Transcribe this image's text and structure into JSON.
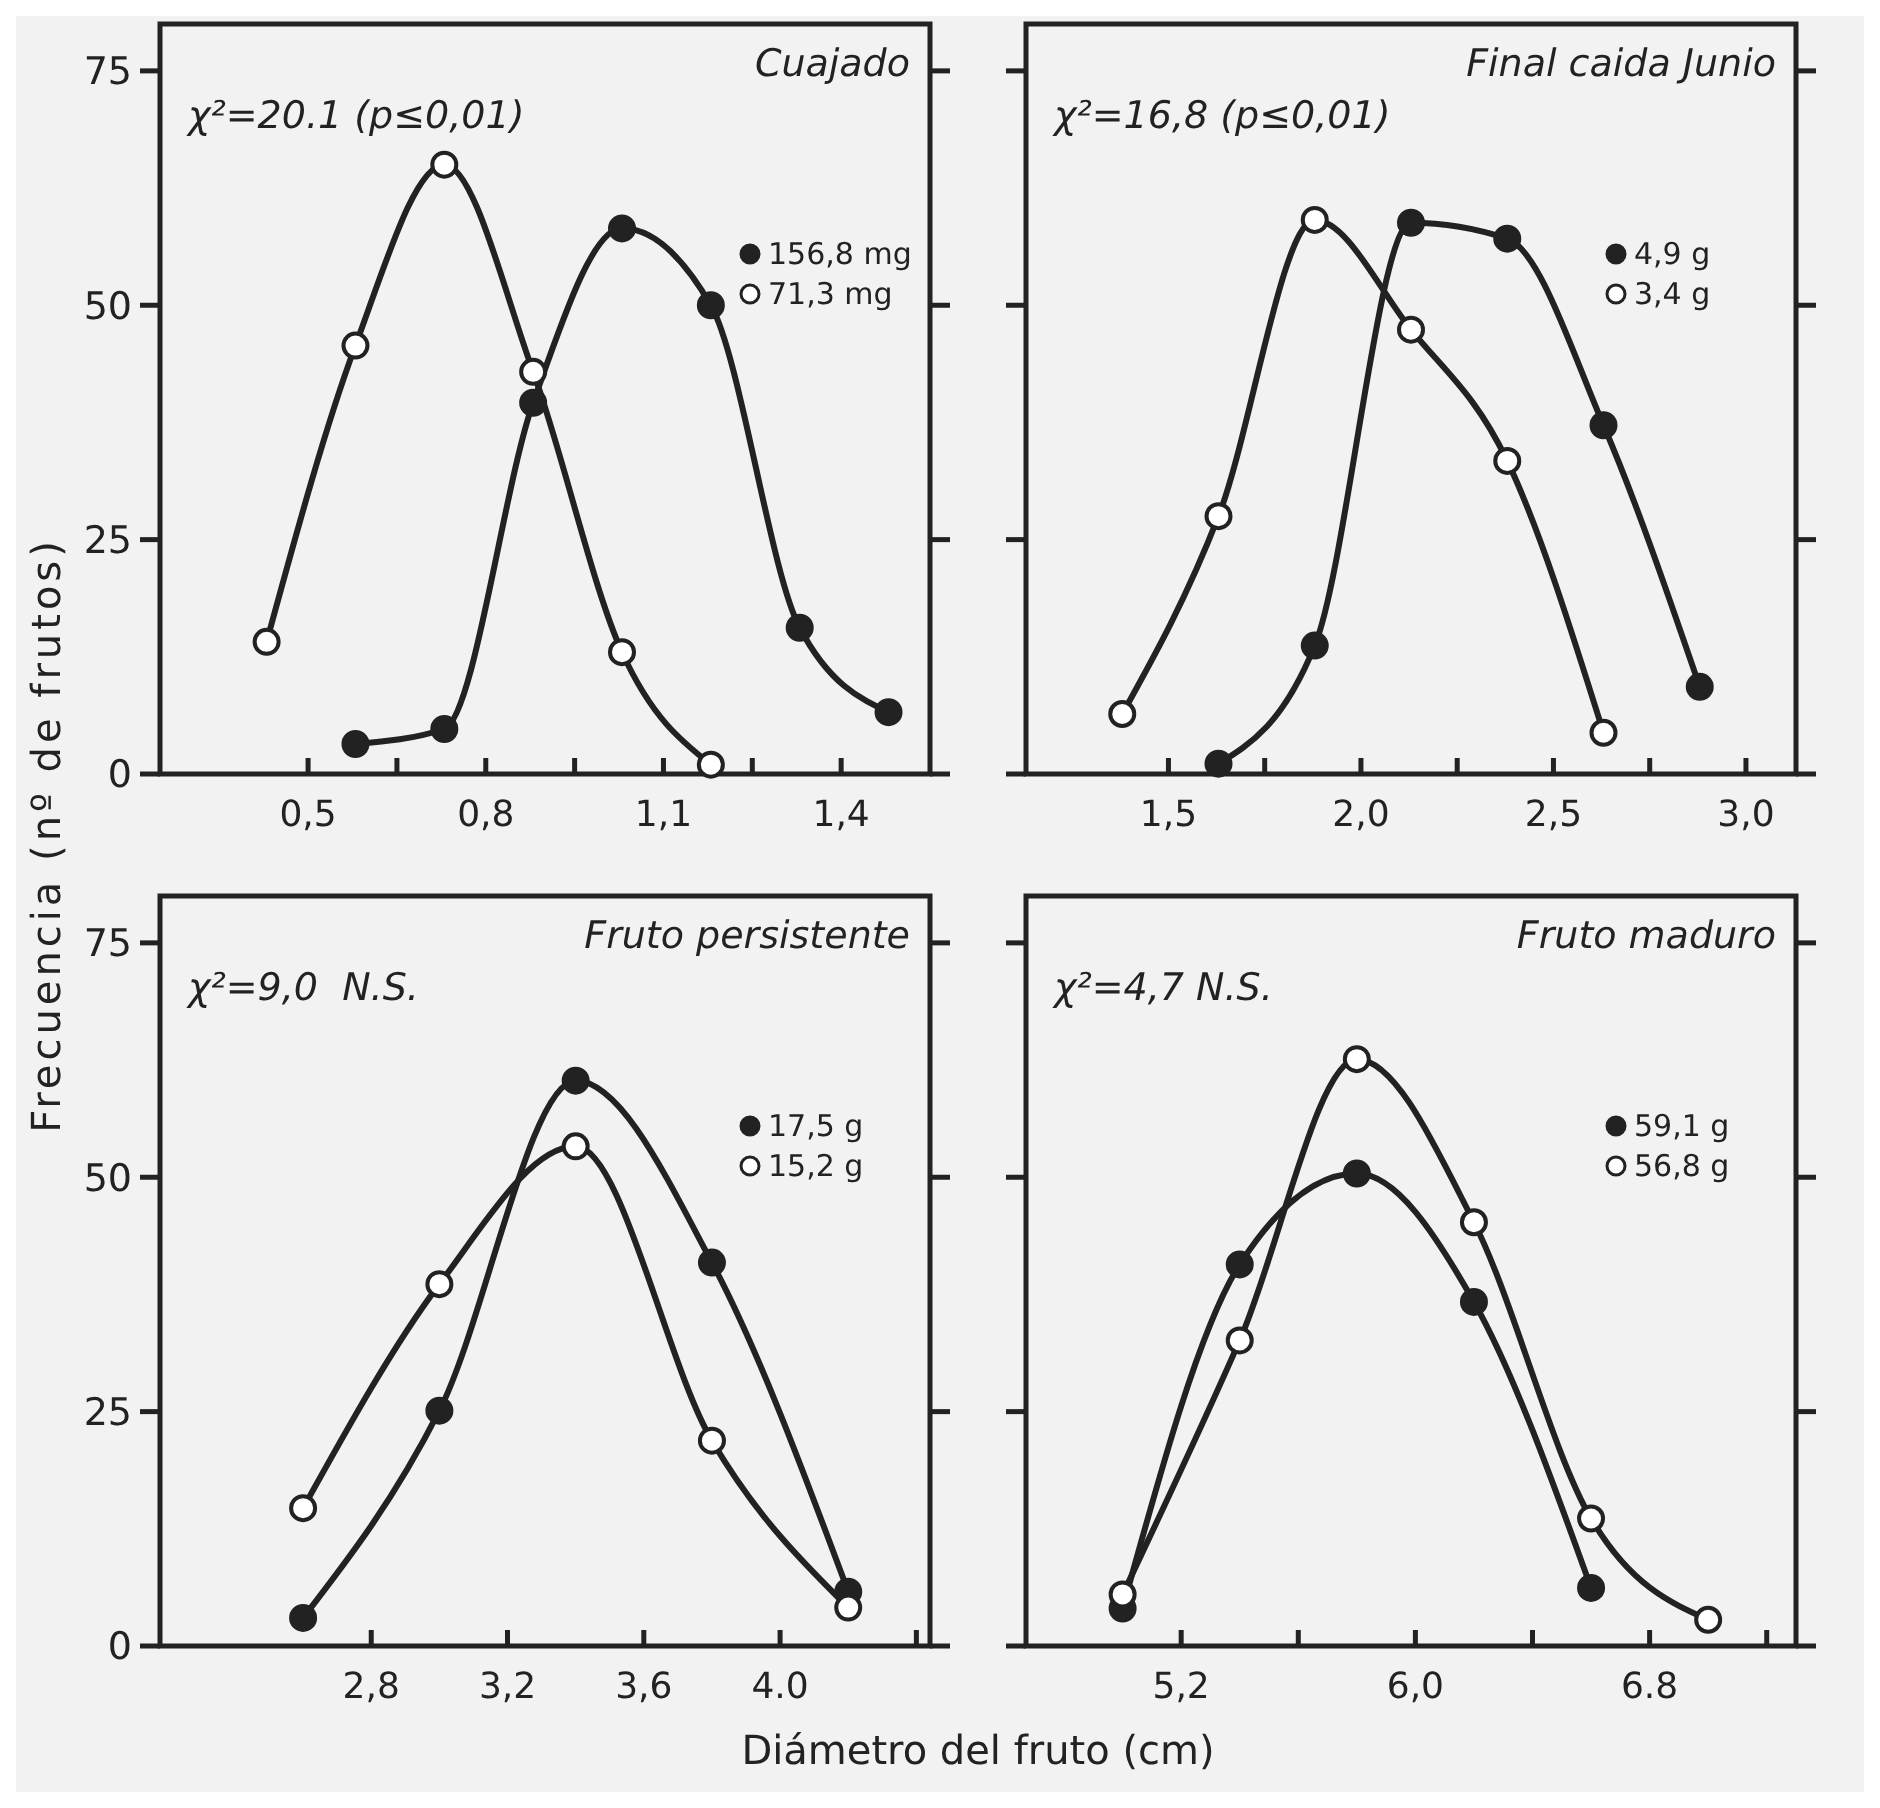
{
  "chart_data": [
    {
      "type": "line",
      "title": "Cuajado",
      "ylabel": "Frecuencia (nº de frutos)",
      "annotations": [
        "χ²=20.1 (p≤0,01)"
      ],
      "xlim": [
        0.25,
        1.55
      ],
      "xticks": [
        {
          "value": 0.5,
          "label": "0,5"
        },
        {
          "value": 0.65,
          "label": null
        },
        {
          "value": 0.8,
          "label": "0,8"
        },
        {
          "value": 0.95,
          "label": null
        },
        {
          "value": 1.1,
          "label": "1,1"
        },
        {
          "value": 1.25,
          "label": null
        },
        {
          "value": 1.4,
          "label": "1,4"
        }
      ],
      "ylim": [
        0,
        80
      ],
      "yticks": [
        0,
        25,
        50,
        75
      ],
      "marker": "circle",
      "legend": "right",
      "grid": false,
      "series": [
        {
          "name": "156,8 mg",
          "color": "#222222",
          "x": [
            0.58,
            0.73,
            0.88,
            1.03,
            1.18,
            1.33,
            1.48
          ],
          "values": [
            3.2,
            4.8,
            39.6,
            58.2,
            50,
            15.6,
            6.6
          ]
        },
        {
          "name": "71,3 mg",
          "color": "#ffffff",
          "x": [
            0.43,
            0.58,
            0.73,
            0.88,
            1.03,
            1.18
          ],
          "values": [
            14.1,
            45.7,
            65,
            42.9,
            13,
            1
          ]
        }
      ]
    },
    {
      "type": "line",
      "title": "Final caida Junio",
      "annotations": [
        "χ²=16,8 (p≤0,01)"
      ],
      "xlim": [
        1.13,
        3.13
      ],
      "xticks": [
        {
          "value": 1.5,
          "label": "1,5"
        },
        {
          "value": 1.75,
          "label": null
        },
        {
          "value": 2.0,
          "label": "2,0"
        },
        {
          "value": 2.25,
          "label": null
        },
        {
          "value": 2.5,
          "label": "2,5"
        },
        {
          "value": 2.75,
          "label": null
        },
        {
          "value": 3.0,
          "label": "3,0"
        }
      ],
      "ylim": [
        0,
        80
      ],
      "yticks": [
        0,
        25,
        50,
        75
      ],
      "tick_labels": "x",
      "marker": "circle",
      "legend": "right",
      "grid": false,
      "series": [
        {
          "name": "4,9 g",
          "color": "#222222",
          "x": [
            1.63,
            1.88,
            2.13,
            2.38,
            2.63,
            2.88
          ],
          "values": [
            1.1,
            13.7,
            58.8,
            57.1,
            37.2,
            9.3
          ]
        },
        {
          "name": "3,4 g",
          "color": "#ffffff",
          "x": [
            1.38,
            1.63,
            1.88,
            2.13,
            2.38,
            2.63
          ],
          "values": [
            6.4,
            27.5,
            59.1,
            47.4,
            33.4,
            4.4
          ]
        }
      ]
    },
    {
      "type": "line",
      "title": "Fruto persistente",
      "xlabel": "Diámetro del fruto (cm)",
      "annotations": [
        "χ²=9,0  N.S."
      ],
      "xlim": [
        2.18,
        4.44
      ],
      "xticks": [
        {
          "value": 2.8,
          "label": "2,8"
        },
        {
          "value": 3.2,
          "label": "3,2"
        },
        {
          "value": 3.6,
          "label": "3,6"
        },
        {
          "value": 4.0,
          "label": "4.0"
        },
        {
          "value": 4.4,
          "label": null
        }
      ],
      "ylim": [
        0,
        80
      ],
      "yticks": [
        0,
        25,
        50,
        75
      ],
      "marker": "circle",
      "legend": "right",
      "grid": false,
      "series": [
        {
          "name": "17,5 g",
          "color": "#222222",
          "x": [
            2.6,
            3.0,
            3.4,
            3.8,
            4.2
          ],
          "values": [
            3,
            25.1,
            60.3,
            40.9,
            5.8
          ]
        },
        {
          "name": "15,2 g",
          "color": "#ffffff",
          "x": [
            2.6,
            3.0,
            3.4,
            3.8,
            4.2
          ],
          "values": [
            14.7,
            38.6,
            53.3,
            21.9,
            4.1
          ]
        }
      ]
    },
    {
      "type": "line",
      "title": "Fruto maduro",
      "annotations": [
        "χ²=4,7 N.S."
      ],
      "xlim": [
        4.67,
        7.3
      ],
      "xticks": [
        {
          "value": 5.2,
          "label": "5,2"
        },
        {
          "value": 5.6,
          "label": null
        },
        {
          "value": 6.0,
          "label": "6,0"
        },
        {
          "value": 6.4,
          "label": null
        },
        {
          "value": 6.8,
          "label": "6.8"
        },
        {
          "value": 7.2,
          "label": null
        }
      ],
      "ylim": [
        0,
        80
      ],
      "yticks": [
        0,
        25,
        50,
        75
      ],
      "tick_labels": "x",
      "marker": "circle",
      "legend": "right",
      "grid": false,
      "series": [
        {
          "name": "59,1 g",
          "color": "#222222",
          "x": [
            5.0,
            5.4,
            5.8,
            6.2,
            6.6
          ],
          "values": [
            4,
            40.7,
            50.4,
            36.7,
            6.2
          ]
        },
        {
          "name": "56,8 g",
          "color": "#ffffff",
          "x": [
            5.0,
            5.4,
            5.8,
            6.2,
            6.6,
            7.0
          ],
          "values": [
            5.5,
            32.6,
            62.6,
            45.2,
            13.6,
            2.8
          ]
        }
      ]
    }
  ]
}
